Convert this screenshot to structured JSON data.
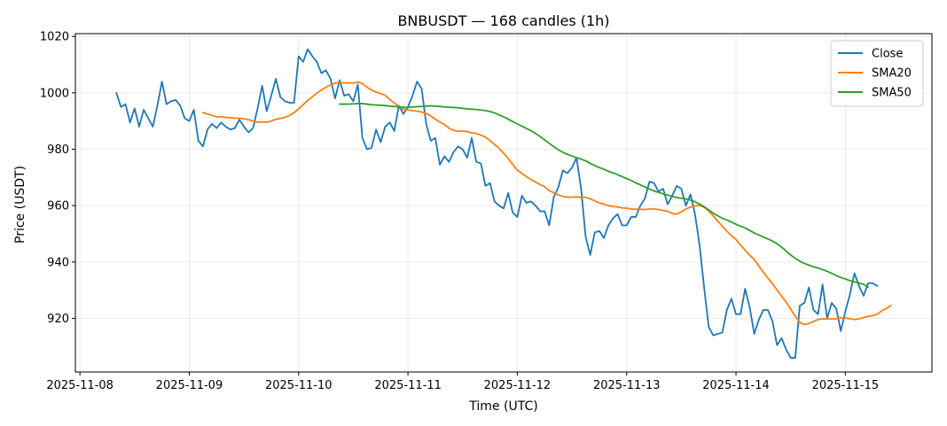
{
  "chart_data": {
    "type": "line",
    "title": "BNBUSDT — 168 candles (1h)",
    "xlabel": "Time (UTC)",
    "ylabel": "Price (USDT)",
    "x_tick_labels": [
      "2025-11-08",
      "2025-11-09",
      "2025-11-10",
      "2025-11-11",
      "2025-11-12",
      "2025-11-13",
      "2025-11-14",
      "2025-11-15"
    ],
    "y_ticks": [
      920,
      940,
      960,
      980,
      1000,
      1020
    ],
    "x_range": [
      "2025-11-07 23:00",
      "2025-11-15 19:00"
    ],
    "ylim": [
      901,
      1021
    ],
    "grid": true,
    "legend_position": "top-right",
    "x_start": "2025-11-08 08:00",
    "x_step": "1h",
    "series": [
      {
        "name": "Close",
        "color": "#1f77b4",
        "values": [
          1000,
          995,
          996,
          989.5,
          994.5,
          988,
          994,
          991,
          988,
          995.5,
          1004,
          996,
          997,
          997.5,
          995.5,
          991,
          990,
          994,
          983,
          981,
          987,
          989,
          987.5,
          989.5,
          988,
          987,
          987.5,
          990.5,
          988,
          986,
          987.5,
          994.5,
          1002.5,
          993.5,
          999,
          1005,
          998.5,
          997,
          996.5,
          996.5,
          1013,
          1011,
          1015.5,
          1013,
          1011,
          1007,
          1008,
          1005,
          998,
          1004.5,
          999,
          999.5,
          997,
          1003,
          984,
          980,
          980.5,
          987,
          982.5,
          988,
          989.5,
          986.5,
          995.5,
          992.5,
          995,
          999,
          1004,
          1001.5,
          989,
          983,
          984,
          974.5,
          977.5,
          975.5,
          979,
          981,
          980,
          977,
          984,
          975.5,
          975,
          967,
          968,
          961.5,
          960,
          959,
          964.5,
          957.5,
          956,
          963.5,
          961,
          961.5,
          960,
          958,
          958,
          953,
          963,
          966.5,
          972.5,
          971.5,
          973.5,
          977,
          966,
          949,
          942.5,
          950.5,
          951,
          948.5,
          953,
          955.5,
          957,
          953,
          953,
          956,
          956,
          960,
          962.5,
          968.5,
          968,
          965,
          966,
          960.5,
          963.5,
          967,
          966,
          960,
          964,
          957,
          946,
          931,
          917,
          914,
          914.5,
          915,
          923,
          927,
          921.5,
          921.5,
          930.5,
          924,
          914.5,
          919.5,
          923,
          923,
          919,
          910.5,
          913,
          909,
          906,
          906,
          924.5,
          925.5,
          931,
          923,
          921.5,
          932,
          920,
          925.5,
          923.5,
          915.5,
          922.5,
          928.5,
          936,
          931.5,
          928,
          932.5,
          932.5,
          931.5
        ]
      },
      {
        "name": "SMA20",
        "color": "#ff7f0e",
        "values": [
          null,
          null,
          null,
          null,
          null,
          null,
          null,
          null,
          null,
          null,
          null,
          null,
          null,
          null,
          null,
          null,
          null,
          null,
          null,
          993,
          992.5,
          992,
          991.5,
          991.5,
          991.3,
          991.2,
          991.0,
          991.0,
          990.8,
          990.5,
          990,
          989.6,
          989.7,
          989.6,
          990.0,
          990.6,
          990.9,
          991.3,
          992.0,
          993.0,
          994.3,
          995.8,
          997.3,
          998.6,
          999.9,
          1001.0,
          1002.0,
          1002.8,
          1003.5,
          1003.7,
          1003.5,
          1003.6,
          1003.4,
          1003.9,
          1003.3,
          1002.0,
          1001.0,
          1000.3,
          999.7,
          999.1,
          997.7,
          996.4,
          995.2,
          994.2,
          993.9,
          993.7,
          993.5,
          993.2,
          992.7,
          991.8,
          990.7,
          989.6,
          988.8,
          987.5,
          986.7,
          986.4,
          986.4,
          986.3,
          985.8,
          985.6,
          985.0,
          984.3,
          983.1,
          981.7,
          980.3,
          978.6,
          976.7,
          974.6,
          972.6,
          971.4,
          970.3,
          969.2,
          968.4,
          967.5,
          966.7,
          965.3,
          964.6,
          963.8,
          963.3,
          963.0,
          963.0,
          963.1,
          962.9,
          963.0,
          962.4,
          961.7,
          961.0,
          960.5,
          960.0,
          959.7,
          959.5,
          959.2,
          959.1,
          958.8,
          958.7,
          958.7,
          958.6,
          958.8,
          958.8,
          958.6,
          958.3,
          958.0,
          957.2,
          957.0,
          957.8,
          958.8,
          959.5,
          959.9,
          960.1,
          959.4,
          958.1,
          956.4,
          954.5,
          952.7,
          950.9,
          949.3,
          948.0,
          946.0,
          944.2,
          942.4,
          940.9,
          938.6,
          936.4,
          934.3,
          932.3,
          930.1,
          927.9,
          925.8,
          923.3,
          920.8,
          918.6,
          917.8,
          918.2,
          918.9,
          919.6,
          919.8,
          919.8,
          919.8,
          919.9,
          920.2,
          920.1,
          919.9,
          919.6,
          919.8,
          920.3,
          920.7,
          921.0,
          921.5,
          922.7,
          923.5,
          924.6
        ]
      },
      {
        "name": "SMA50",
        "color": "#2ca02c",
        "values": [
          null,
          null,
          null,
          null,
          null,
          null,
          null,
          null,
          null,
          null,
          null,
          null,
          null,
          null,
          null,
          null,
          null,
          null,
          null,
          null,
          null,
          null,
          null,
          null,
          null,
          null,
          null,
          null,
          null,
          null,
          null,
          null,
          null,
          null,
          null,
          null,
          null,
          null,
          null,
          null,
          null,
          null,
          null,
          null,
          null,
          null,
          null,
          null,
          null,
          996,
          996,
          996,
          996.1,
          996.2,
          996.2,
          996.0,
          995.8,
          995.7,
          995.6,
          995.5,
          995.3,
          995.2,
          995.0,
          994.9,
          994.8,
          995.0,
          995.1,
          995.2,
          995.3,
          995.4,
          995.3,
          995.2,
          995.0,
          994.9,
          994.8,
          994.7,
          994.5,
          994.3,
          994.2,
          994.1,
          993.9,
          993.7,
          993.4,
          992.9,
          992.2,
          991.5,
          990.7,
          989.8,
          989.0,
          988.2,
          987.4,
          986.6,
          985.6,
          984.5,
          983.3,
          982.1,
          980.9,
          979.8,
          978.9,
          978.2,
          977.6,
          977.0,
          976.5,
          975.9,
          975.0,
          974.2,
          973.5,
          972.9,
          972.2,
          971.6,
          971.0,
          970.3,
          969.6,
          968.9,
          968.1,
          967.4,
          966.6,
          965.9,
          965.2,
          964.7,
          964.2,
          963.7,
          963.3,
          962.9,
          962.6,
          962.4,
          962.0,
          961.4,
          960.5,
          959.6,
          958.5,
          957.3,
          956.4,
          955.5,
          954.9,
          954.2,
          953.4,
          952.7,
          952.1,
          951.2,
          950.3,
          949.6,
          948.9,
          948.2,
          947.4,
          946.5,
          945.3,
          943.9,
          942.5,
          941.3,
          940.3,
          939.5,
          938.9,
          938.3,
          937.9,
          937.3,
          936.7,
          936.0,
          935.2,
          934.5,
          934.0,
          933.4,
          933.0,
          932.5,
          932.1,
          931.1
        ]
      }
    ]
  }
}
